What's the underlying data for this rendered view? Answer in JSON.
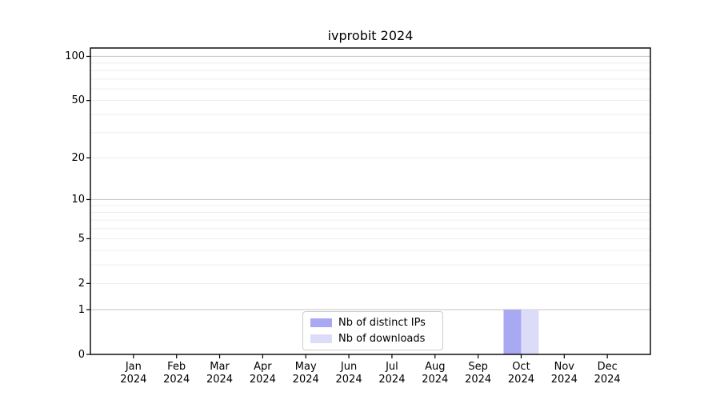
{
  "figure": {
    "title": "ivprobit 2024"
  },
  "chart_data": {
    "type": "bar",
    "title": "ivprobit 2024",
    "categories": [
      "Jan 2024",
      "Feb 2024",
      "Mar 2024",
      "Apr 2024",
      "May 2024",
      "Jun 2024",
      "Jul 2024",
      "Aug 2024",
      "Sep 2024",
      "Oct 2024",
      "Nov 2024",
      "Dec 2024"
    ],
    "series": [
      {
        "name": "Nb of distinct IPs",
        "color": "#a9a9f3",
        "values": [
          0,
          0,
          0,
          0,
          0,
          0,
          0,
          0,
          0,
          1,
          0,
          0
        ]
      },
      {
        "name": "Nb of downloads",
        "color": "#dcdcf8",
        "values": [
          0,
          0,
          0,
          0,
          0,
          0,
          0,
          0,
          0,
          1,
          0,
          0
        ]
      }
    ],
    "yscale": "log1p",
    "ylim": [
      0,
      114
    ],
    "yticks": [
      0,
      1,
      2,
      5,
      10,
      20,
      50,
      100
    ],
    "grid": {
      "horizontal": true,
      "vertical": false,
      "minor_color": "#ededed",
      "decade_color": "#c9c9c9"
    },
    "legend_position": "lower center",
    "axis_color": "#000000",
    "background_color": "#ffffff"
  }
}
